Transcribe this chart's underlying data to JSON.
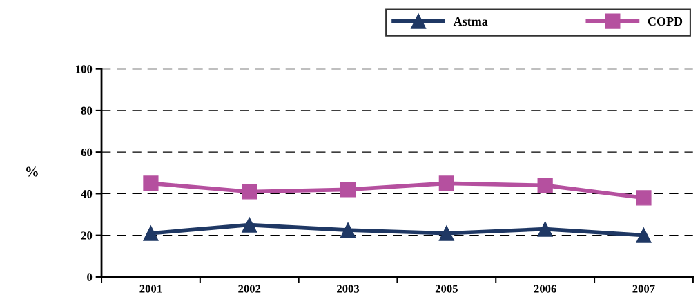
{
  "chart_data": {
    "type": "line",
    "ylabel": "%",
    "categories": [
      "2001",
      "2002",
      "2003",
      "2005",
      "2006",
      "2007"
    ],
    "series": [
      {
        "name": "Astma",
        "color": "#1f3864",
        "values": [
          21,
          25,
          22.5,
          21,
          23,
          20
        ],
        "marker": "triangle"
      },
      {
        "name": "COPD",
        "color": "#b5509f",
        "values": [
          45,
          41,
          42,
          45,
          44,
          38
        ],
        "marker": "square"
      }
    ],
    "ylim": [
      0,
      100
    ],
    "yticks": [
      0,
      20,
      40,
      60,
      80,
      100
    ],
    "grid": "y",
    "legend": "top right",
    "line_style": "solid"
  }
}
